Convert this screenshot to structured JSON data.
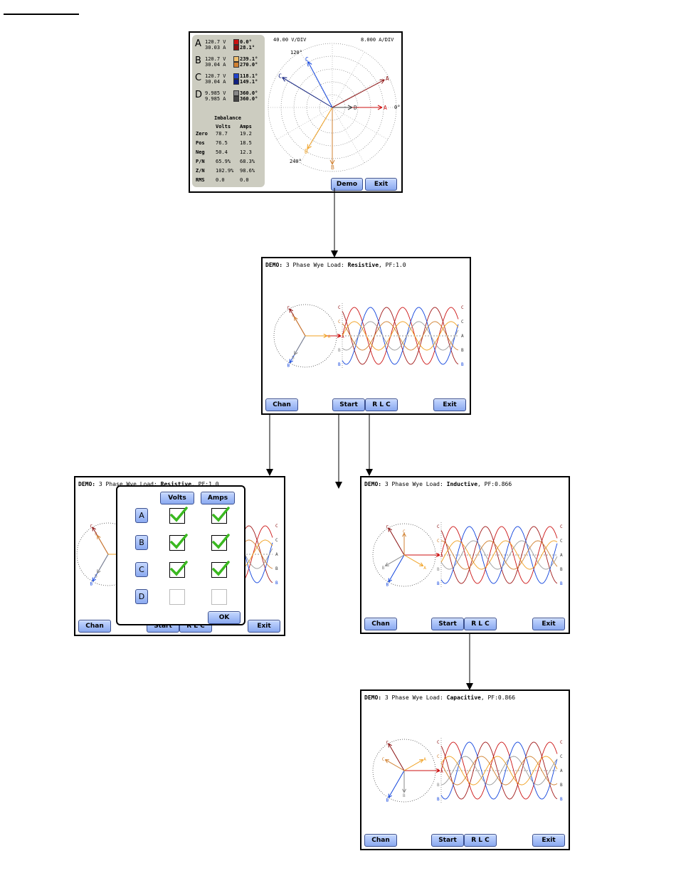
{
  "meter": {
    "volts_div": "40.00 V/DIV",
    "amps_div": "8.000 A/DIV",
    "phases": [
      {
        "id": "A",
        "v": "120.7 V",
        "a": "30.03 A",
        "ang_v": "0.0°",
        "ang_a": "28.1°",
        "color_v": "#cc1111",
        "color_a": "#8a1010"
      },
      {
        "id": "B",
        "v": "120.7 V",
        "a": "30.04 A",
        "ang_v": "239.1°",
        "ang_a": "270.0°",
        "color_v": "#f0c070",
        "color_a": "#d08030"
      },
      {
        "id": "C",
        "v": "120.7 V",
        "a": "30.04 A",
        "ang_v": "118.1°",
        "ang_a": "149.1°",
        "color_v": "#2244cc",
        "color_a": "#102080"
      },
      {
        "id": "D",
        "v": "9.985 V",
        "a": "9.985 A",
        "ang_v": "360.0°",
        "ang_a": "360.0°",
        "color_v": "#888888",
        "color_a": "#444444"
      }
    ],
    "imbalance_title": "Imbalance",
    "imbalance_headers": [
      "Volts",
      "Amps"
    ],
    "imbalance_rows": [
      {
        "label": "Zero",
        "volts": "78.7",
        "amps": "19.2"
      },
      {
        "label": "Pos",
        "volts": "76.5",
        "amps": "18.5"
      },
      {
        "label": "Neg",
        "volts": "50.4",
        "amps": "12.3"
      },
      {
        "label": "P/N",
        "volts": "65.9%",
        "amps": "68.3%"
      },
      {
        "label": "Z/N",
        "volts": "102.9%",
        "amps": "98.6%"
      },
      {
        "label": "RMS",
        "volts": "0.0",
        "amps": "0.0"
      }
    ],
    "angles": {
      "a120": "120°",
      "a240": "240°",
      "a0": "0°"
    },
    "demo_label": "Demo",
    "exit_label": "Exit"
  },
  "demo_screens": [
    {
      "prefix": "DEMO:",
      "phase": "3 Phase Wye",
      "load_word": "Load:",
      "load": "Resistive",
      "pf_label": ", PF:",
      "pf": "1.0"
    },
    {
      "prefix": "DEMO:",
      "phase": "3 Phase Wye",
      "load_word": "Load:",
      "load": "Resistive",
      "pf_label": ", PF:",
      "pf": "1.0"
    },
    {
      "prefix": "DEMO:",
      "phase": "3 Phase Wye",
      "load_word": "Load:",
      "load": "Inductive",
      "pf_label": ", PF:",
      "pf": "0.866"
    },
    {
      "prefix": "DEMO:",
      "phase": "3 Phase Wye",
      "load_word": "Load:",
      "load": "Capacitive",
      "pf_label": ", PF:",
      "pf": "0.866"
    }
  ],
  "buttons": {
    "chan": "Chan",
    "start": "Start",
    "rlc": "R L C",
    "exit": "Exit",
    "ok": "OK"
  },
  "dialog": {
    "volts": "Volts",
    "amps": "Amps",
    "channels": [
      "A",
      "B",
      "C",
      "D"
    ]
  },
  "trace_labels": {
    "a": "A",
    "b": "B",
    "c": "C"
  },
  "colors": {
    "phase_a": "#cc1111",
    "phase_b": "#f0a020",
    "phase_c": "#1144dd",
    "current_b": "#999999"
  }
}
